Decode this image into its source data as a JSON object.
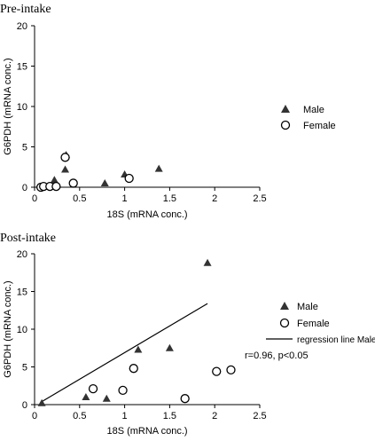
{
  "chart_data": [
    {
      "type": "scatter",
      "title": "Pre-intake",
      "xlabel": "18S (mRNA conc.)",
      "ylabel": "G6PDH (mRNA conc.)",
      "xlim": [
        0,
        2.5
      ],
      "ylim": [
        0,
        20
      ],
      "xticks": [
        "0",
        "0.5",
        "1",
        "1.5",
        "2",
        "2.5"
      ],
      "yticks": [
        "0",
        "5",
        "10",
        "15",
        "20"
      ],
      "legend": "right",
      "series": [
        {
          "name": "Male",
          "marker": "triangle",
          "points": [
            [
              0.22,
              0.9
            ],
            [
              0.34,
              2.2
            ],
            [
              0.35,
              4.0
            ],
            [
              0.78,
              0.5
            ],
            [
              1.0,
              1.6
            ],
            [
              1.38,
              2.3
            ]
          ]
        },
        {
          "name": "Female",
          "marker": "circle",
          "points": [
            [
              0.07,
              0.0
            ],
            [
              0.1,
              0.1
            ],
            [
              0.17,
              0.1
            ],
            [
              0.24,
              0.1
            ],
            [
              0.34,
              3.7
            ],
            [
              0.43,
              0.5
            ],
            [
              1.05,
              1.1
            ]
          ]
        }
      ],
      "annotation": ""
    },
    {
      "type": "scatter",
      "title": "Post-intake",
      "xlabel": "18S (mRNA conc.)",
      "ylabel": "G6PDH (mRNA conc.)",
      "xlim": [
        0,
        2.5
      ],
      "ylim": [
        0,
        20
      ],
      "xticks": [
        "0",
        "0.5",
        "1",
        "1.5",
        "2",
        "2.5"
      ],
      "yticks": [
        "0",
        "5",
        "10",
        "15",
        "20"
      ],
      "legend": "right",
      "series": [
        {
          "name": "Male",
          "marker": "triangle",
          "points": [
            [
              0.08,
              0.2
            ],
            [
              0.57,
              1.0
            ],
            [
              0.8,
              0.8
            ],
            [
              1.15,
              7.3
            ],
            [
              1.5,
              7.5
            ],
            [
              1.92,
              18.8
            ]
          ]
        },
        {
          "name": "Female",
          "marker": "circle",
          "points": [
            [
              0.65,
              2.1
            ],
            [
              0.98,
              1.9
            ],
            [
              1.1,
              4.8
            ],
            [
              1.67,
              0.8
            ],
            [
              2.02,
              4.4
            ],
            [
              2.18,
              4.6
            ]
          ]
        }
      ],
      "regression": {
        "name": "regression line Male",
        "from": [
          0.08,
          0.4
        ],
        "to": [
          1.92,
          13.4
        ]
      },
      "annotation": "r=0.96, p<0.05"
    }
  ]
}
